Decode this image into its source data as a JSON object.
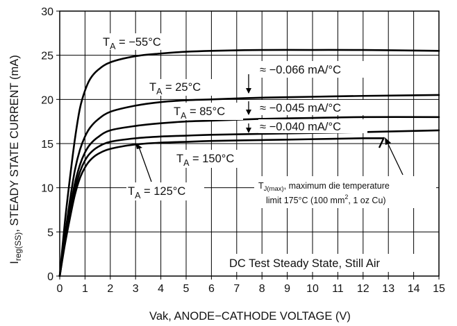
{
  "chart_data": {
    "type": "line",
    "xlabel": "Vak, ANODE−CATHODE VOLTAGE (V)",
    "ylabel": {
      "main": "I",
      "sub": "reg(SS)",
      "rest": ", STEADY STATE CURRENT (mA)"
    },
    "xlim": [
      0,
      15
    ],
    "ylim": [
      0,
      30
    ],
    "xticks": [
      0,
      1,
      2,
      3,
      4,
      5,
      6,
      7,
      8,
      9,
      10,
      11,
      12,
      13,
      14,
      15
    ],
    "yticks": [
      0,
      5,
      10,
      15,
      20,
      25,
      30
    ],
    "grid": true,
    "series": [
      {
        "key": "m55",
        "label_main": "T",
        "label_sub": "A",
        "label_rest": " = −55°C",
        "x": [
          0,
          0.2,
          0.4,
          0.6,
          0.8,
          1.0,
          1.2,
          1.5,
          2,
          3,
          4,
          5,
          6,
          8,
          10,
          12,
          15
        ],
        "y": [
          0,
          6.0,
          11.0,
          15.5,
          19.0,
          21.0,
          22.3,
          23.3,
          24.2,
          24.9,
          25.2,
          25.4,
          25.5,
          25.6,
          25.6,
          25.6,
          25.5
        ]
      },
      {
        "key": "p25",
        "label_main": "T",
        "label_sub": "A",
        "label_rest": " = 25°C",
        "x": [
          0,
          0.2,
          0.4,
          0.6,
          0.8,
          1.0,
          1.2,
          1.5,
          2,
          3,
          4,
          5,
          6,
          8,
          10,
          12,
          15
        ],
        "y": [
          0,
          4.5,
          8.5,
          12.0,
          14.3,
          15.8,
          16.8,
          17.7,
          18.6,
          19.3,
          19.7,
          19.9,
          20.0,
          20.2,
          20.3,
          20.4,
          20.5
        ]
      },
      {
        "key": "p85",
        "label_main": "T",
        "label_sub": "A",
        "label_rest": " = 85°C",
        "x": [
          0,
          0.2,
          0.4,
          0.6,
          0.8,
          1.0,
          1.2,
          1.5,
          2,
          3,
          4,
          5,
          6,
          8,
          10,
          12,
          15
        ],
        "y": [
          0,
          4.0,
          7.5,
          10.5,
          12.6,
          14.0,
          14.9,
          15.7,
          16.5,
          17.0,
          17.3,
          17.5,
          17.6,
          17.8,
          17.9,
          18.0,
          18.0
        ]
      },
      {
        "key": "p150",
        "label_main": "T",
        "label_sub": "A",
        "label_rest": " = 150°C",
        "x": [
          0,
          0.2,
          0.4,
          0.6,
          0.8,
          1.0,
          1.2,
          1.5,
          2,
          3,
          4,
          5,
          6,
          8,
          10,
          12,
          15
        ],
        "y": [
          0,
          3.8,
          7.0,
          9.8,
          11.8,
          13.1,
          13.9,
          14.6,
          15.2,
          15.6,
          15.8,
          15.9,
          16.0,
          16.1,
          16.2,
          16.3,
          16.5
        ]
      },
      {
        "key": "p125",
        "label_main": "T",
        "label_sub": "A",
        "label_rest": " = 125°C",
        "x": [
          0,
          0.2,
          0.4,
          0.6,
          0.8,
          1.0,
          1.2,
          1.5,
          2,
          3,
          4,
          5,
          6,
          8,
          10,
          12,
          12.8
        ],
        "y": [
          0,
          3.5,
          6.5,
          9.2,
          11.1,
          12.3,
          13.1,
          13.8,
          14.4,
          14.9,
          15.1,
          15.2,
          15.3,
          15.4,
          15.5,
          15.6,
          15.6
        ]
      }
    ],
    "annotations": {
      "coef1": "≈ −0.066 mA/°C",
      "coef2": "≈ −0.045 mA/°C",
      "coef3": "≈ −0.040 mA/°C",
      "tj_main": "T",
      "tj_sub": "J(max)",
      "tj_rest": ", maximum die temperature",
      "limit_pre": "limit 175°C (100 mm",
      "limit_sup": "2",
      "limit_post": ", 1 oz Cu)",
      "condition": "DC Test Steady State, Still Air"
    }
  }
}
